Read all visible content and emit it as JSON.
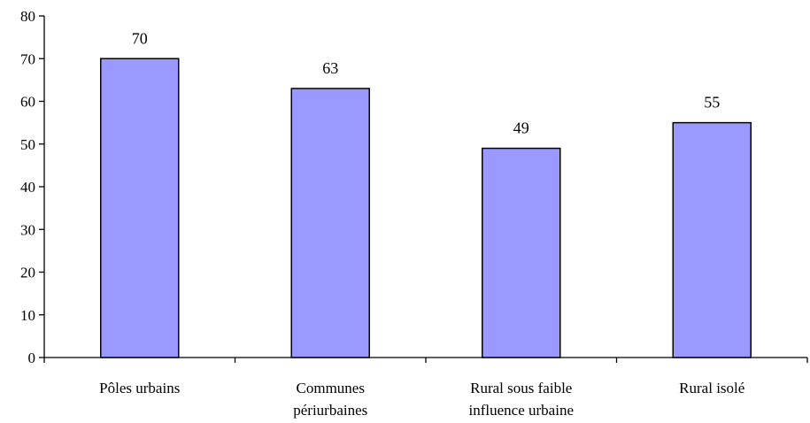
{
  "chart_data": {
    "type": "bar",
    "title": "",
    "xlabel": "",
    "ylabel": "",
    "categories": [
      [
        "Pôles urbains"
      ],
      [
        "Communes",
        "périurbaines"
      ],
      [
        "Rural sous faible",
        "influence urbaine"
      ],
      [
        "Rural isolé"
      ]
    ],
    "values": [
      70,
      63,
      49,
      55
    ],
    "data_labels": [
      "70",
      "63",
      "49",
      "55"
    ],
    "ylim": [
      0,
      80
    ],
    "yticks": [
      0,
      10,
      20,
      30,
      40,
      50,
      60,
      70,
      80
    ],
    "grid": false,
    "legend": "none",
    "bar_color": "#9999ff",
    "bar_edge_color": "#000000"
  }
}
